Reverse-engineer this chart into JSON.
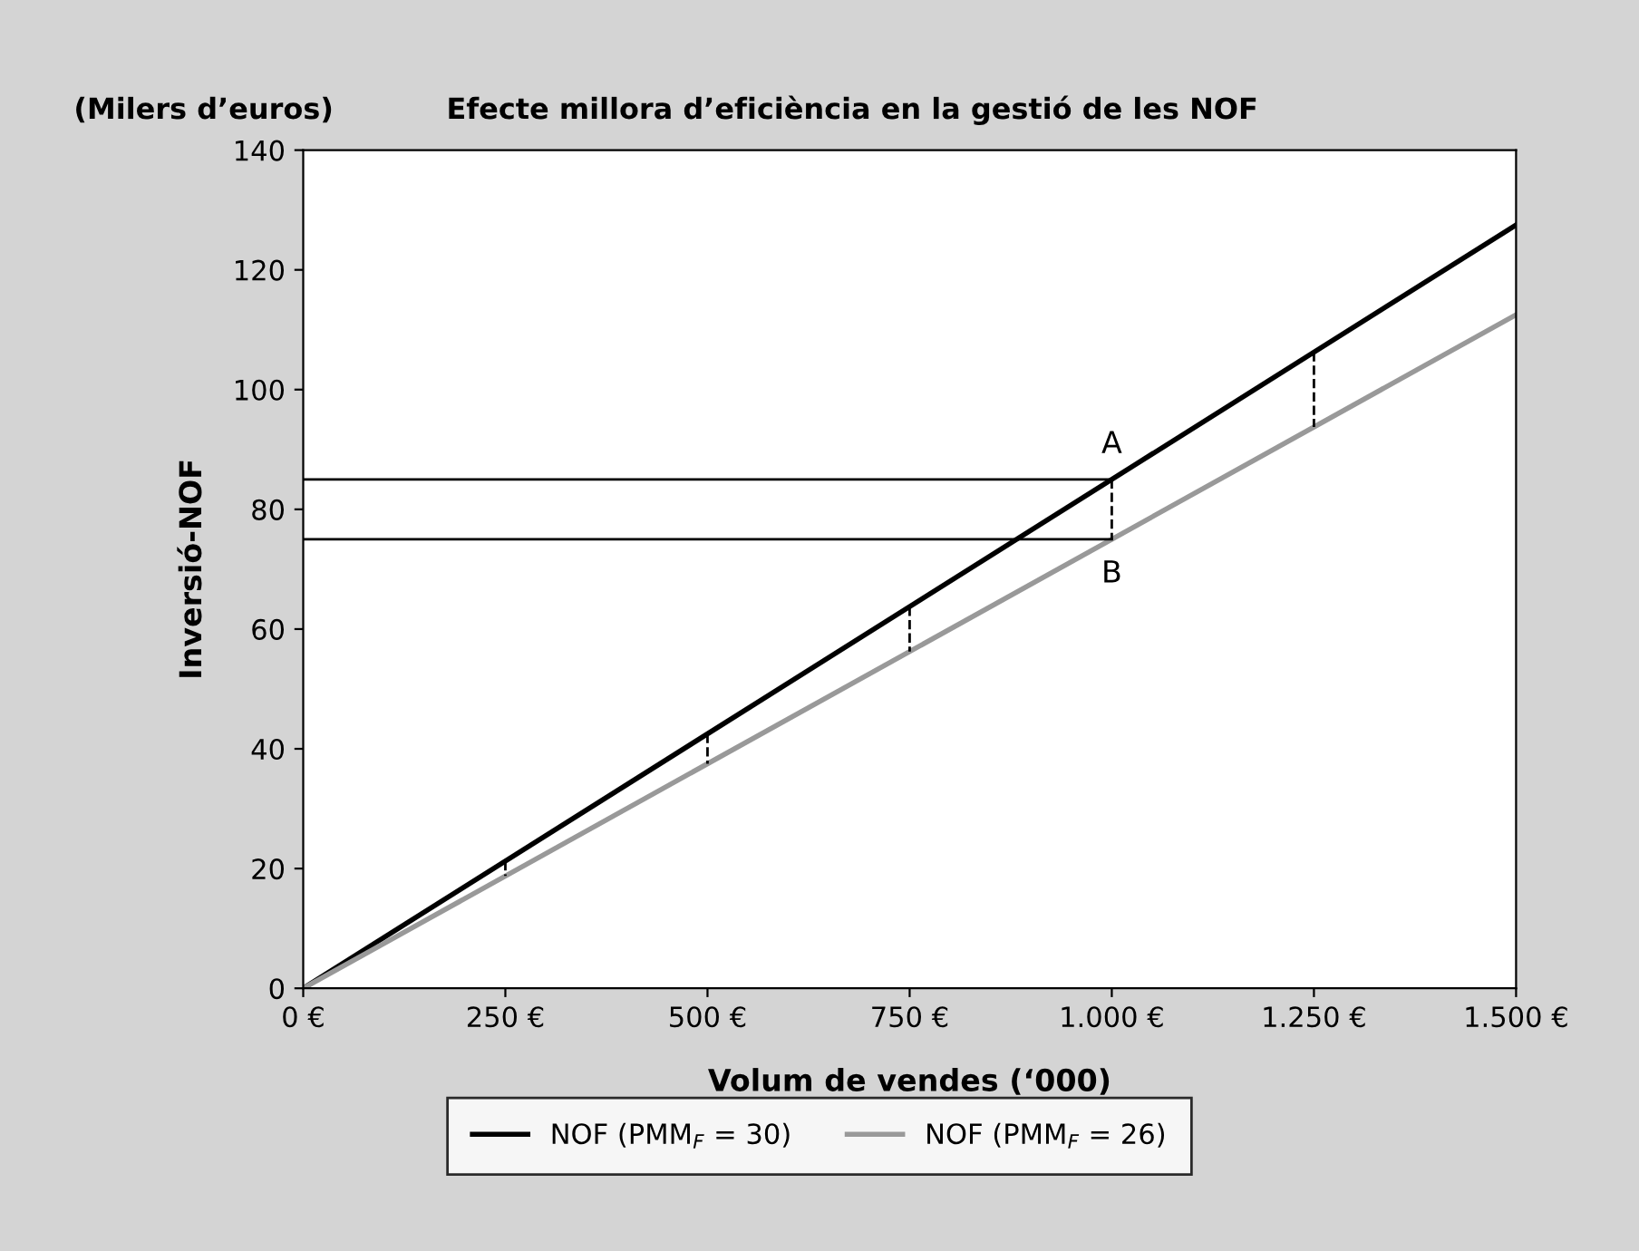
{
  "chart_data": {
    "type": "line",
    "title": "Efecte millora d’eficiència en la gestió de les NOF",
    "xlabel": "Volum de vendes (‘000)",
    "ylabel": "Inversió-NOF",
    "annotations": [
      "(Milers d’euros)",
      {
        "text": "A",
        "x": 1000,
        "y": 85
      },
      {
        "text": "B",
        "x": 1000,
        "y": 75
      }
    ],
    "xlim": [
      0,
      1500
    ],
    "ylim": [
      0,
      140
    ],
    "xticks": [
      {
        "value": 0,
        "label": "0 €"
      },
      {
        "value": 250,
        "label": "250 €"
      },
      {
        "value": 500,
        "label": "500 €"
      },
      {
        "value": 750,
        "label": "750 €"
      },
      {
        "value": 1000,
        "label": "1.000 €"
      },
      {
        "value": 1250,
        "label": "1.250 €"
      },
      {
        "value": 1500,
        "label": "1.500 €"
      }
    ],
    "yticks": [
      0,
      20,
      40,
      60,
      80,
      100,
      120,
      140
    ],
    "grid": false,
    "legend": "bottom",
    "marker": "none",
    "line_style": "solid",
    "series": [
      {
        "name": "NOF (PMM$_{F}$ = 30)",
        "color": "#000000",
        "x": [
          0,
          1500
        ],
        "values": [
          0,
          127.5
        ]
      },
      {
        "name": "NOF (PMM$_{F}$ = 26)",
        "color": "#999999",
        "x": [
          0,
          1500
        ],
        "values": [
          0,
          112.5
        ]
      },
      {
        "color": "#000000",
        "x": [
          0,
          1000
        ],
        "values": [
          85,
          85
        ]
      },
      {
        "color": "#000000",
        "x": [
          0,
          1000
        ],
        "values": [
          75,
          75
        ]
      },
      {
        "color": "#000000",
        "line_style": "dashed",
        "x": [
          250,
          250
        ],
        "values": [
          21.25,
          18.75
        ]
      },
      {
        "color": "#000000",
        "line_style": "dashed",
        "x": [
          500,
          500
        ],
        "values": [
          42.5,
          37.5
        ]
      },
      {
        "color": "#000000",
        "line_style": "dashed",
        "x": [
          750,
          750
        ],
        "values": [
          63.75,
          56.25
        ]
      },
      {
        "color": "#000000",
        "line_style": "dashed",
        "x": [
          1000,
          1000
        ],
        "values": [
          85,
          75
        ]
      },
      {
        "color": "#000000",
        "line_style": "dashed",
        "x": [
          1250,
          1250
        ],
        "values": [
          106.25,
          93.75
        ]
      }
    ]
  }
}
